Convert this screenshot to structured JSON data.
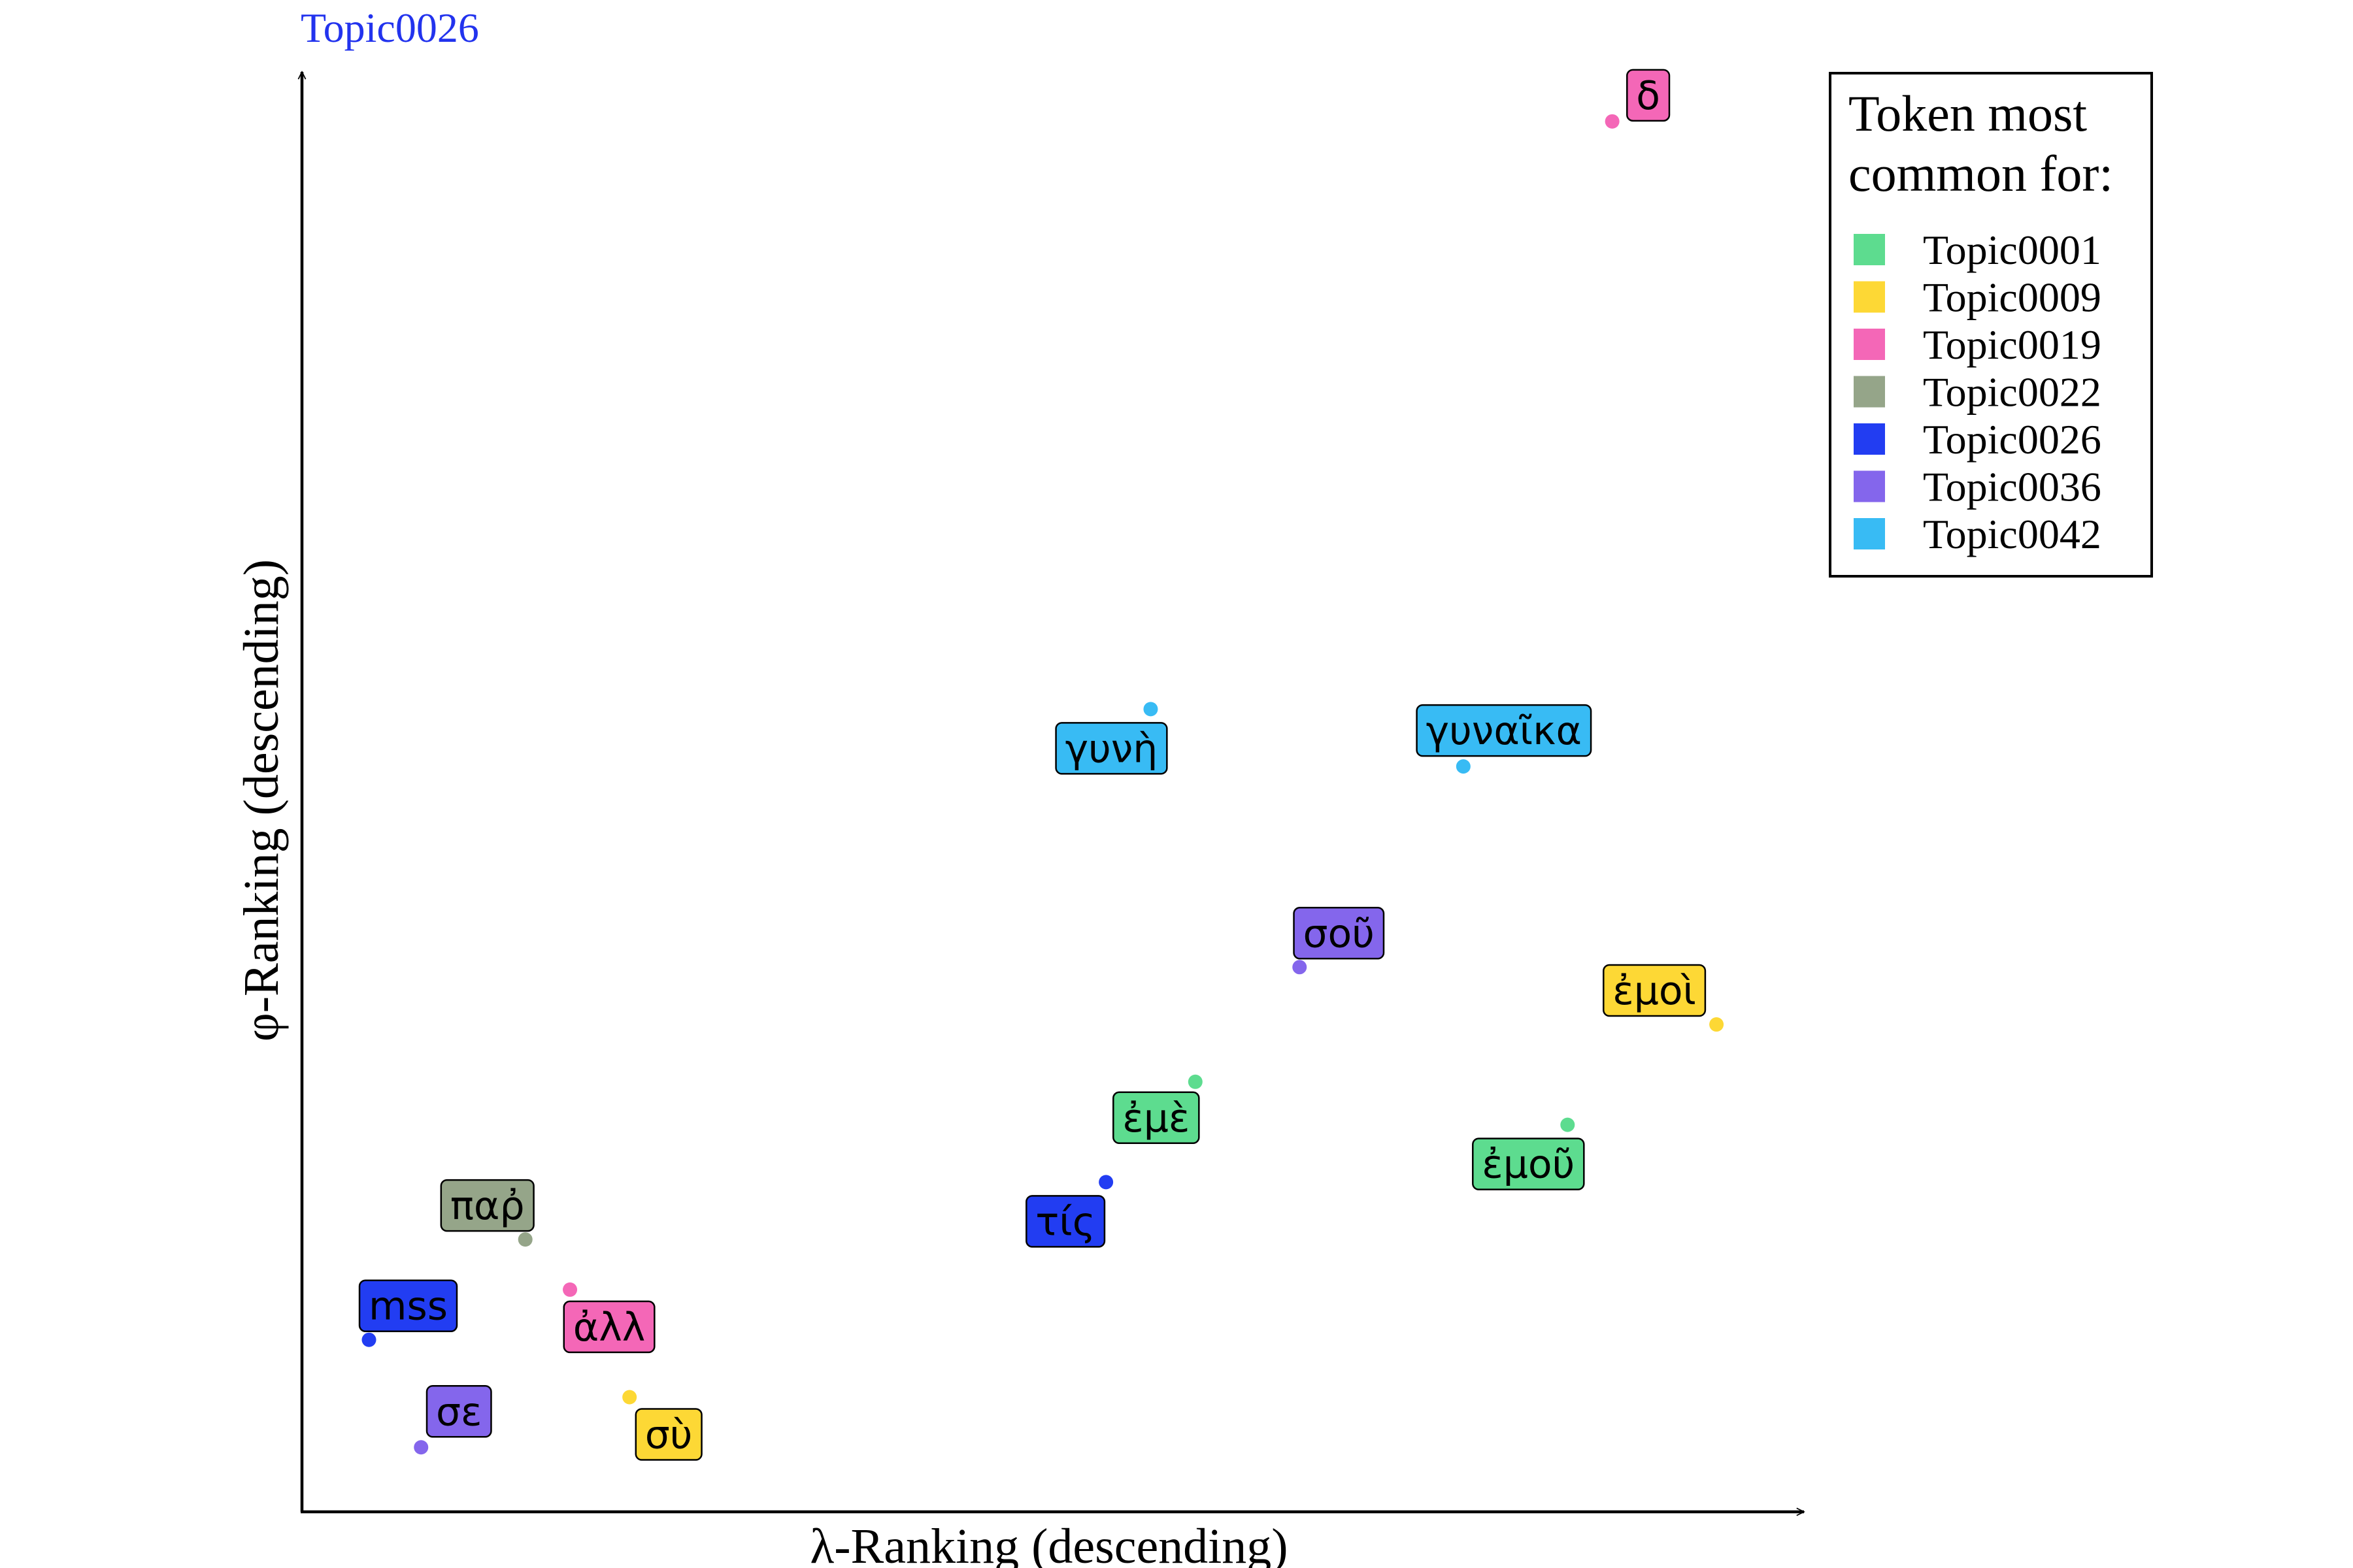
{
  "chart_data": {
    "type": "scatter",
    "title": "Topic0026",
    "title_color": "#2233ee",
    "xlabel": "λ-Ranking (descending)",
    "ylabel": "φ-Ranking (descending)",
    "xlim": [
      0,
      100
    ],
    "ylim": [
      0,
      100
    ],
    "grid": false,
    "legend": {
      "title_lines": [
        "Token most",
        "common for:"
      ],
      "placement": "top-right",
      "entries": [
        {
          "name": "Topic0001",
          "color": "#5ddc8f"
        },
        {
          "name": "Topic0009",
          "color": "#fdd835"
        },
        {
          "name": "Topic0019",
          "color": "#f467b7"
        },
        {
          "name": "Topic0022",
          "color": "#95a589"
        },
        {
          "name": "Topic0026",
          "color": "#223df2"
        },
        {
          "name": "Topic0036",
          "color": "#8466ec"
        },
        {
          "name": "Topic0042",
          "color": "#38bbf4"
        }
      ]
    },
    "points": [
      {
        "label": "δ",
        "x": 88,
        "y": 97,
        "topic": "Topic0019"
      },
      {
        "label": "γυνὴ",
        "x": 57,
        "y": 56,
        "topic": "Topic0042"
      },
      {
        "label": "γυναῖκα",
        "x": 78,
        "y": 52,
        "topic": "Topic0042"
      },
      {
        "label": "σοῦ",
        "x": 67,
        "y": 38,
        "topic": "Topic0036"
      },
      {
        "label": "ἐμοὶ",
        "x": 95,
        "y": 34,
        "topic": "Topic0009"
      },
      {
        "label": "ἐμὲ",
        "x": 60,
        "y": 30,
        "topic": "Topic0001"
      },
      {
        "label": "ἐμοῦ",
        "x": 85,
        "y": 27,
        "topic": "Topic0001"
      },
      {
        "label": "τίς",
        "x": 54,
        "y": 23,
        "topic": "Topic0026"
      },
      {
        "label": "παῤ",
        "x": 15,
        "y": 19,
        "topic": "Topic0022"
      },
      {
        "label": "mss",
        "x": 4.5,
        "y": 12,
        "topic": "Topic0026"
      },
      {
        "label": "ἀλλ",
        "x": 18,
        "y": 15.5,
        "topic": "Topic0019"
      },
      {
        "label": "σε",
        "x": 8,
        "y": 4.5,
        "topic": "Topic0036"
      },
      {
        "label": "σὺ",
        "x": 22,
        "y": 8,
        "topic": "Topic0009"
      }
    ]
  }
}
